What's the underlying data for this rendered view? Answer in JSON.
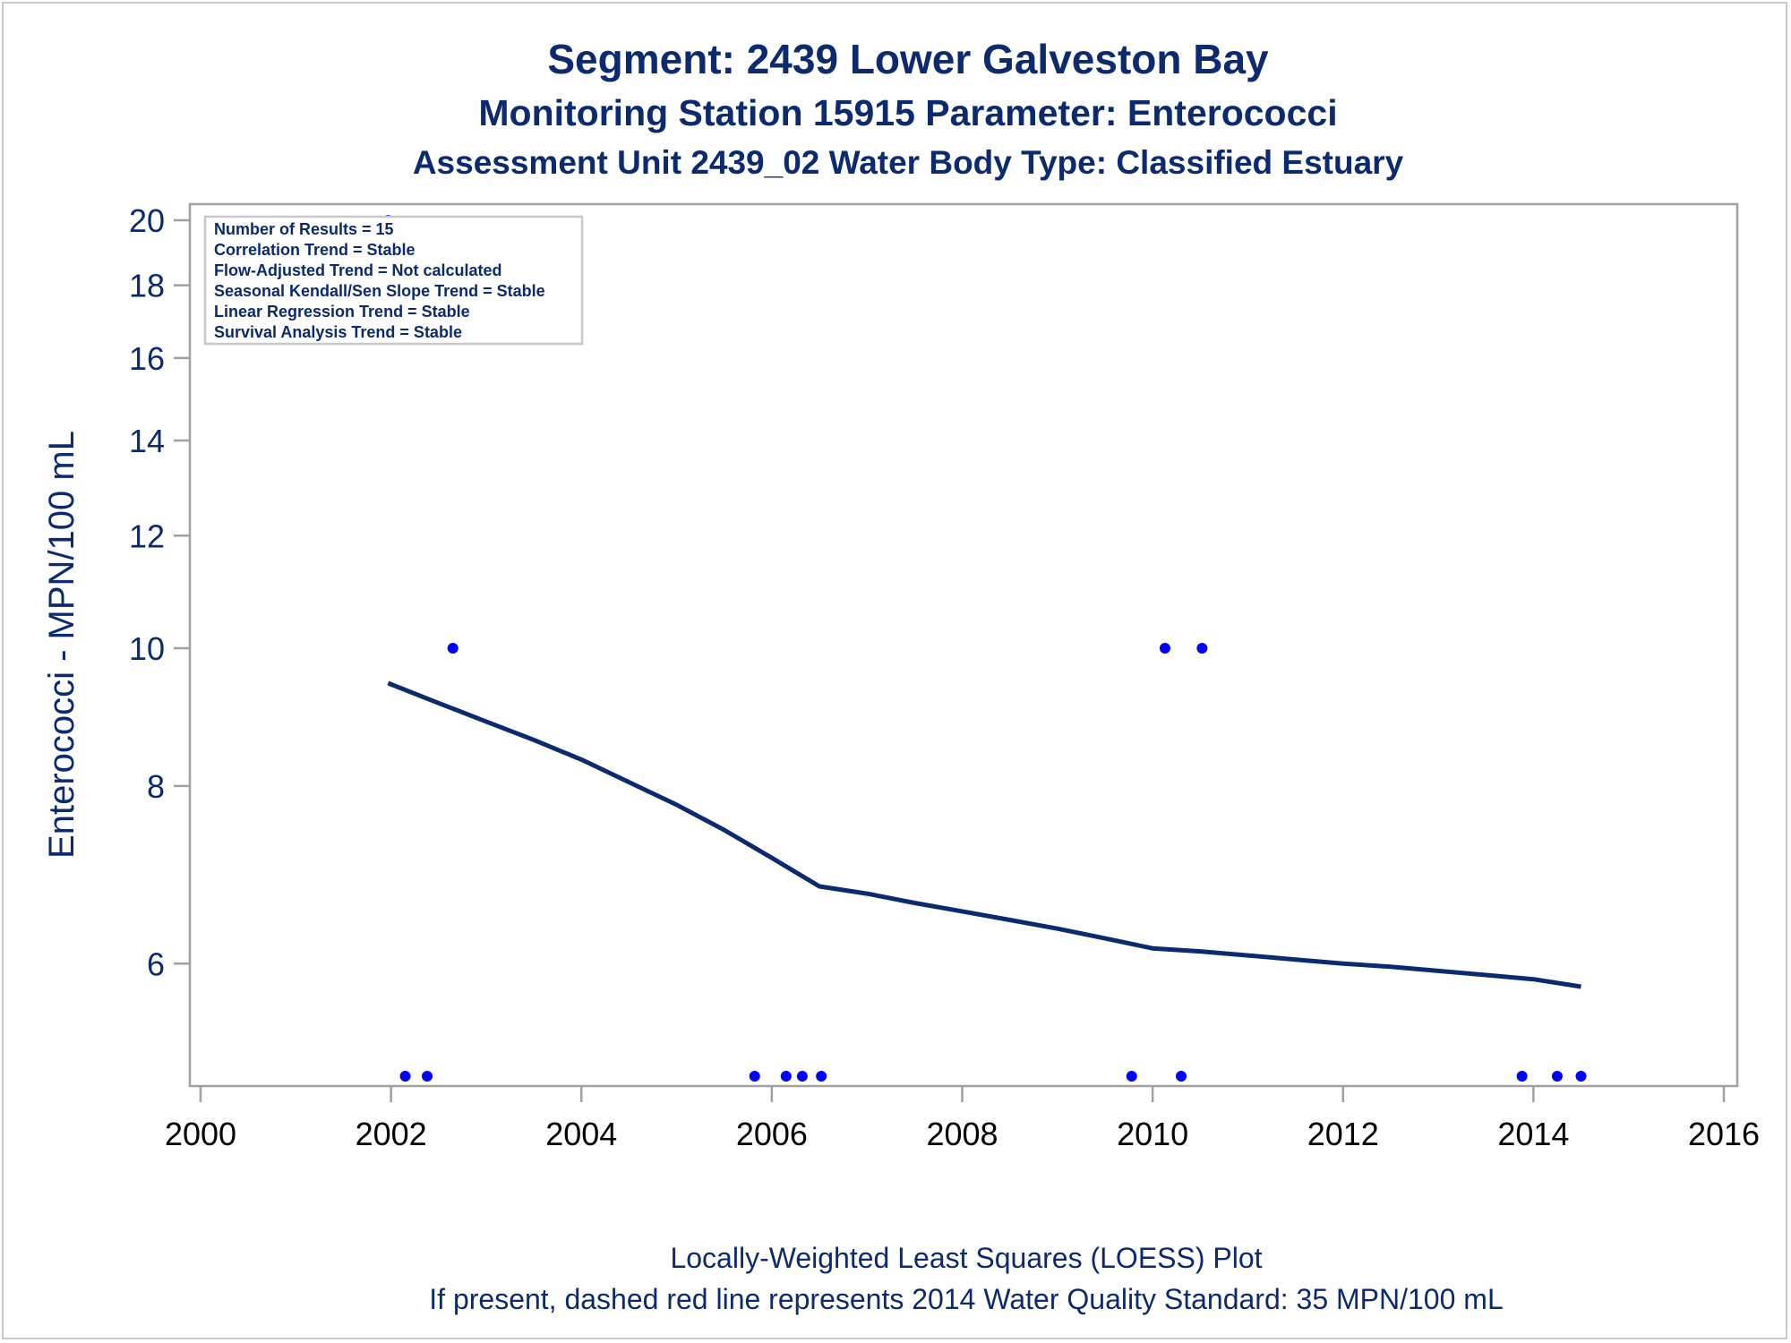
{
  "chart_data": {
    "type": "scatter",
    "title": "Segment: 2439  Lower Galveston Bay",
    "subtitle_1": "Monitoring Station 15915 Parameter: Enterococci",
    "subtitle_2": "Assessment Unit 2439_02   Water Body Type: Classified Estuary",
    "xlabel": "",
    "ylabel": "Enterococci - MPN/100 mL",
    "yscale": "log",
    "xlim": [
      2000,
      2016
    ],
    "ylim": [
      5,
      20
    ],
    "x_ticks": [
      2000,
      2002,
      2004,
      2006,
      2008,
      2010,
      2012,
      2014,
      2016
    ],
    "y_ticks": [
      6,
      8,
      10,
      12,
      14,
      16,
      18,
      20
    ],
    "grid": false,
    "stats_box": {
      "placement": "top-left",
      "lines": [
        "Number of Results = 15",
        "Correlation Trend = Stable",
        "Flow-Adjusted Trend = Not calculated",
        "Seasonal Kendall/Sen Slope Trend = Stable",
        "Linear Regression Trend = Stable",
        "Survival Analysis Trend = Stable"
      ]
    },
    "points": [
      {
        "x": 2001.97,
        "y": 20
      },
      {
        "x": 2002.15,
        "y": 5
      },
      {
        "x": 2002.38,
        "y": 5
      },
      {
        "x": 2002.65,
        "y": 10
      },
      {
        "x": 2005.82,
        "y": 5
      },
      {
        "x": 2006.15,
        "y": 5
      },
      {
        "x": 2006.32,
        "y": 5
      },
      {
        "x": 2006.52,
        "y": 5
      },
      {
        "x": 2009.78,
        "y": 5
      },
      {
        "x": 2010.13,
        "y": 10
      },
      {
        "x": 2010.3,
        "y": 5
      },
      {
        "x": 2010.52,
        "y": 10
      },
      {
        "x": 2013.88,
        "y": 5
      },
      {
        "x": 2014.25,
        "y": 5
      },
      {
        "x": 2014.5,
        "y": 5
      }
    ],
    "loess": [
      {
        "x": 2001.97,
        "y": 9.45
      },
      {
        "x": 2002.5,
        "y": 9.15
      },
      {
        "x": 2003.0,
        "y": 8.88
      },
      {
        "x": 2003.5,
        "y": 8.62
      },
      {
        "x": 2004.0,
        "y": 8.35
      },
      {
        "x": 2004.5,
        "y": 8.05
      },
      {
        "x": 2005.0,
        "y": 7.76
      },
      {
        "x": 2005.5,
        "y": 7.45
      },
      {
        "x": 2006.0,
        "y": 7.12
      },
      {
        "x": 2006.5,
        "y": 6.8
      },
      {
        "x": 2007.0,
        "y": 6.72
      },
      {
        "x": 2007.5,
        "y": 6.62
      },
      {
        "x": 2008.0,
        "y": 6.53
      },
      {
        "x": 2008.5,
        "y": 6.44
      },
      {
        "x": 2009.0,
        "y": 6.35
      },
      {
        "x": 2009.5,
        "y": 6.25
      },
      {
        "x": 2010.0,
        "y": 6.15
      },
      {
        "x": 2010.5,
        "y": 6.12
      },
      {
        "x": 2011.0,
        "y": 6.08
      },
      {
        "x": 2011.5,
        "y": 6.04
      },
      {
        "x": 2012.0,
        "y": 6.0
      },
      {
        "x": 2012.5,
        "y": 5.97
      },
      {
        "x": 2013.0,
        "y": 5.93
      },
      {
        "x": 2013.5,
        "y": 5.89
      },
      {
        "x": 2014.0,
        "y": 5.85
      },
      {
        "x": 2014.5,
        "y": 5.78
      }
    ],
    "footnotes": [
      "Locally-Weighted Least Squares (LOESS) Plot",
      "If present, dashed red line represents 2014 Water Quality Standard: 35 MPN/100 mL"
    ],
    "colors": {
      "text": "#0b2a6f",
      "points": "#0000ff",
      "loess": "#0b2a6f",
      "axis": "#a0a0a0"
    }
  }
}
